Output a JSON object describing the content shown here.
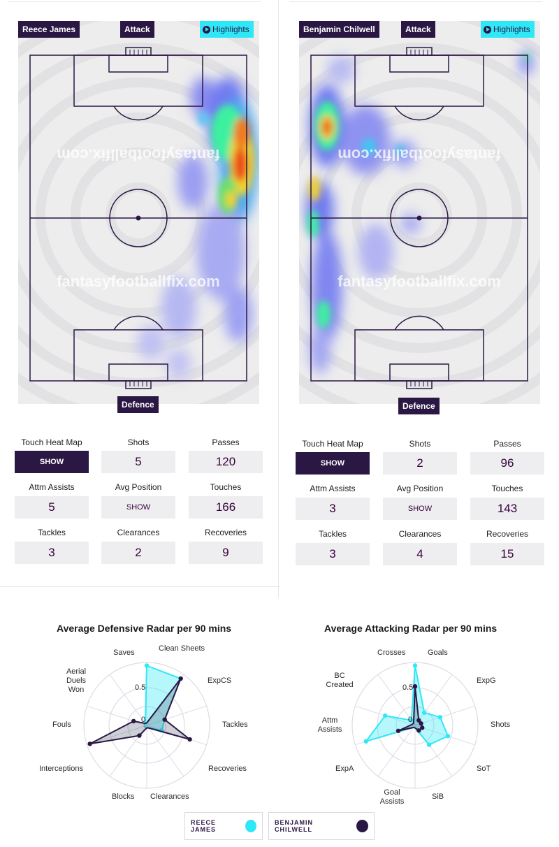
{
  "players": [
    {
      "name": "Reece James",
      "attack_label": "Attack",
      "defence_label": "Defence",
      "highlights_label": "Highlights",
      "watermark": "fantasyfootballfix.com",
      "stats": {
        "touch_heat_map": {
          "label": "Touch Heat Map",
          "value": "SHOW"
        },
        "shots": {
          "label": "Shots",
          "value": "5"
        },
        "passes": {
          "label": "Passes",
          "value": "120"
        },
        "attm_assists": {
          "label": "Attm Assists",
          "value": "5"
        },
        "avg_position": {
          "label": "Avg Position",
          "value": "SHOW"
        },
        "touches": {
          "label": "Touches",
          "value": "166"
        },
        "tackles": {
          "label": "Tackles",
          "value": "3"
        },
        "clearances": {
          "label": "Clearances",
          "value": "2"
        },
        "recoveries": {
          "label": "Recoveries",
          "value": "9"
        }
      }
    },
    {
      "name": "Benjamin Chilwell",
      "attack_label": "Attack",
      "defence_label": "Defence",
      "highlights_label": "Highlights",
      "watermark": "fantasyfootballfix.com",
      "stats": {
        "touch_heat_map": {
          "label": "Touch Heat Map",
          "value": "SHOW"
        },
        "shots": {
          "label": "Shots",
          "value": "2"
        },
        "passes": {
          "label": "Passes",
          "value": "96"
        },
        "attm_assists": {
          "label": "Attm Assists",
          "value": "3"
        },
        "avg_position": {
          "label": "Avg Position",
          "value": "SHOW"
        },
        "touches": {
          "label": "Touches",
          "value": "143"
        },
        "tackles": {
          "label": "Tackles",
          "value": "3"
        },
        "clearances": {
          "label": "Clearances",
          "value": "4"
        },
        "recoveries": {
          "label": "Recoveries",
          "value": "15"
        }
      }
    }
  ],
  "colors": {
    "player1": "#2fe8f7",
    "player2": "#2b1744",
    "dark": "#2b1744",
    "accent": "#2fe8f7"
  },
  "chart_data": [
    {
      "type": "radar",
      "title": "Average Defensive Radar per 90 mins",
      "axes": [
        "Clean Sheets",
        "ExpCS",
        "Tackles",
        "Recoveries",
        "Clearances",
        "Blocks",
        "Interceptions",
        "Fouls",
        "Aerial Duels Won",
        "Saves"
      ],
      "tick_labels": [
        "0",
        "0.5"
      ],
      "series": [
        {
          "name": "REECE JAMES",
          "values": [
            0.95,
            0.92,
            0.3,
            0.25,
            0.05,
            0.02,
            0.02,
            0.02,
            0.02,
            0.0
          ]
        },
        {
          "name": "BENJAMIN CHILWELL",
          "values": [
            0.0,
            0.92,
            0.3,
            0.72,
            0.05,
            0.02,
            0.2,
            0.95,
            0.22,
            0.0
          ]
        }
      ]
    },
    {
      "type": "radar",
      "title": "Average Attacking Radar per 90 mins",
      "axes": [
        "Goals",
        "ExpG",
        "Shots",
        "SoT",
        "SiB",
        "Goal Assists",
        "ExpA",
        "Attm Assists",
        "BC Created",
        "Crosses"
      ],
      "tick_labels": [
        "0",
        "0.5"
      ],
      "series": [
        {
          "name": "REECE JAMES",
          "values": [
            0.95,
            0.25,
            0.42,
            0.55,
            0.38,
            0.0,
            0.0,
            0.82,
            0.5,
            0.1
          ]
        },
        {
          "name": "BENJAMIN CHILWELL",
          "values": [
            0.62,
            0.1,
            0.1,
            0.12,
            0.1,
            0.0,
            0.0,
            0.28,
            0.05,
            0.0
          ]
        }
      ]
    }
  ],
  "legend": {
    "player1": "REECE JAMES",
    "player2": "BENJAMIN CHILWELL"
  }
}
